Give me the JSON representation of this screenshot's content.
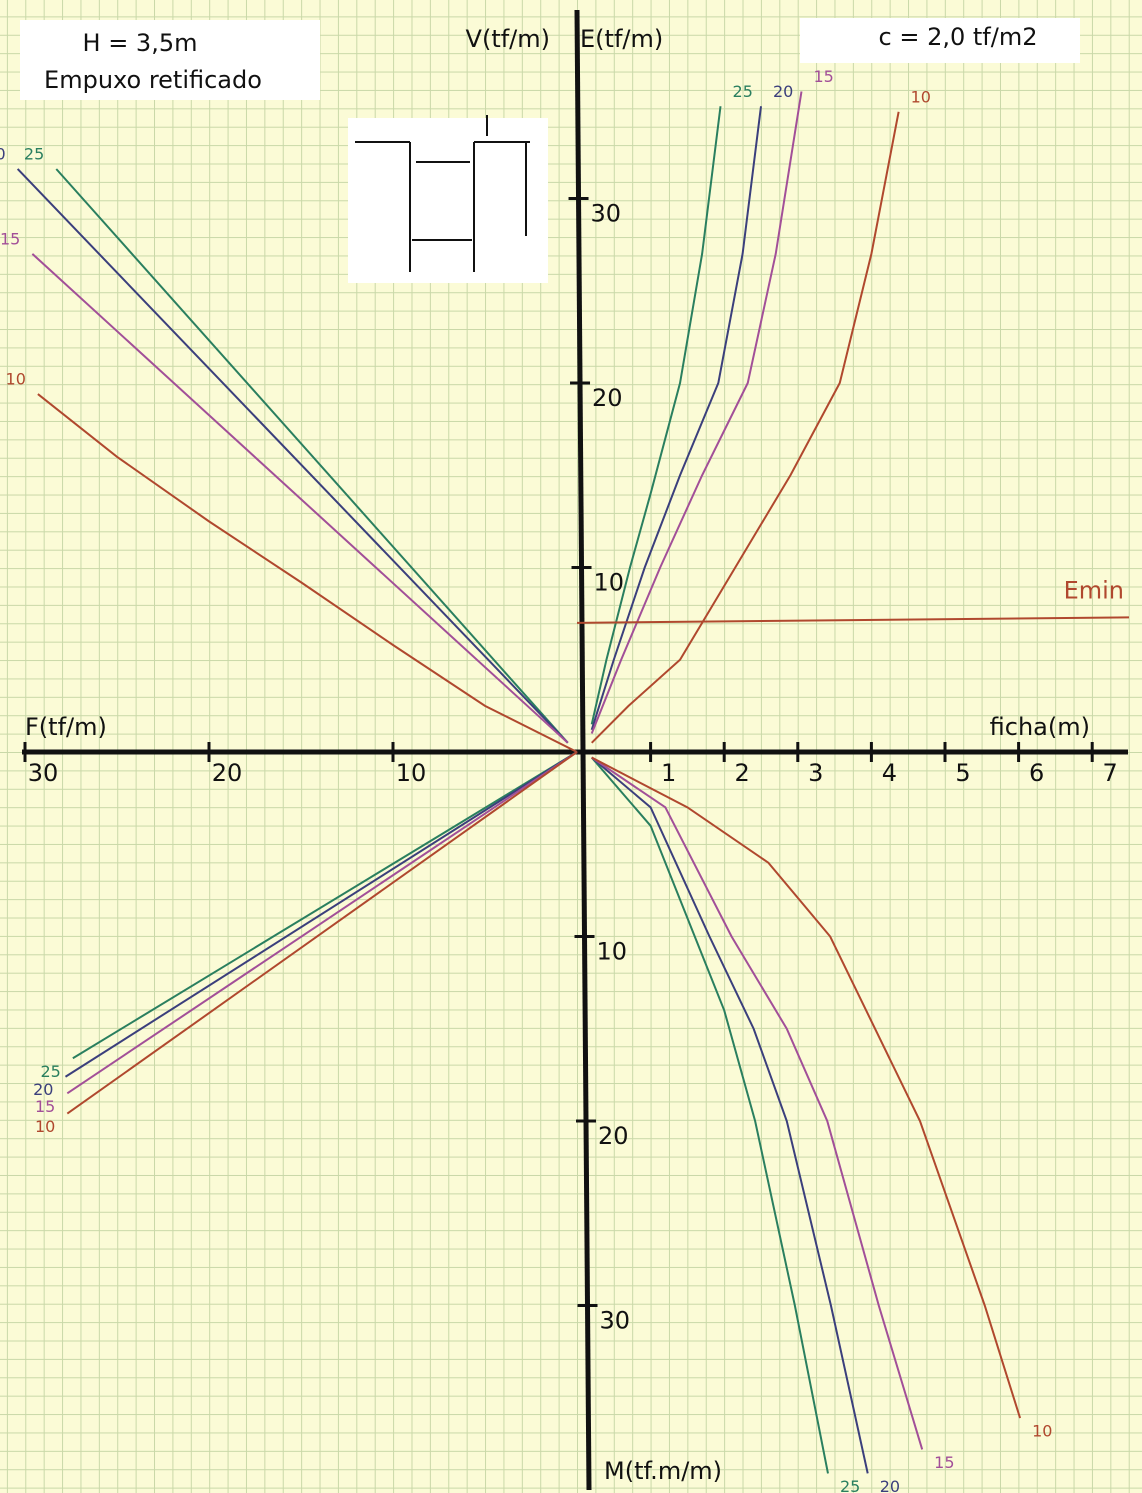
{
  "annotations": [
    "H = 3,5m",
    "Empuxo retificado",
    "c = 2,0 tf/m2"
  ],
  "chart_data": [
    {
      "type": "line",
      "quadrant": "upper-right",
      "xlabel": "ficha(m)",
      "ylabel": "E(tf/m)",
      "xlim": [
        0,
        7.5
      ],
      "ylim": [
        0,
        40
      ],
      "xticks": [
        1,
        2,
        3,
        4,
        5,
        6,
        7
      ],
      "yticks": [
        10,
        20,
        30
      ],
      "series": [
        {
          "name": "25",
          "color": "#2a7f5f",
          "x": [
            0.2,
            0.4,
            0.72,
            1.0,
            1.4,
            1.7,
            1.95
          ],
          "values": [
            1.5,
            5,
            10,
            14,
            20,
            27,
            35
          ]
        },
        {
          "name": "20",
          "color": "#3b3f7c",
          "x": [
            0.2,
            0.5,
            0.92,
            1.4,
            1.92,
            2.25,
            2.5
          ],
          "values": [
            1.2,
            5,
            10,
            15,
            20,
            27,
            35
          ]
        },
        {
          "name": "15",
          "color": "#a24f98",
          "x": [
            0.2,
            0.6,
            1.13,
            1.7,
            2.32,
            2.7,
            3.05
          ],
          "values": [
            1,
            5,
            10,
            15,
            20,
            27,
            35.8
          ]
        },
        {
          "name": "10",
          "color": "#b0482e",
          "x": [
            0.2,
            0.7,
            1.4,
            2.15,
            2.9,
            3.57,
            4.0,
            4.37
          ],
          "values": [
            0.5,
            2.5,
            5,
            10,
            15,
            20,
            27,
            34.7
          ]
        },
        {
          "name": "Emin",
          "color": "#b0482e",
          "x": [
            0,
            7.5
          ],
          "values": [
            7,
            7.3
          ]
        }
      ]
    },
    {
      "type": "line",
      "quadrant": "upper-left",
      "xlabel": "F(tf/m)",
      "ylabel": "V(tf/m)",
      "xlim": [
        0,
        30
      ],
      "ylim": [
        0,
        40
      ],
      "xticks": [
        10,
        20,
        30
      ],
      "series": [
        {
          "name": "25",
          "color": "#2a7f5f",
          "x": [
            0.5,
            28.3
          ],
          "values": [
            0.5,
            31.6
          ]
        },
        {
          "name": "20",
          "color": "#3b3f7c",
          "x": [
            0.5,
            30.4
          ],
          "values": [
            0.5,
            31.6
          ]
        },
        {
          "name": "15",
          "color": "#a24f98",
          "x": [
            0.5,
            29.6
          ],
          "values": [
            0.5,
            27
          ]
        },
        {
          "name": "10",
          "color": "#b0482e",
          "x": [
            0,
            5,
            10,
            15,
            20,
            25,
            29.3
          ],
          "values": [
            0,
            2.5,
            5.8,
            9.2,
            12.5,
            16,
            19.4
          ]
        }
      ]
    },
    {
      "type": "line",
      "quadrant": "lower-right",
      "ylabel": "M(tf.m/m)",
      "xlim": [
        0,
        7.5
      ],
      "ylim": [
        0,
        40
      ],
      "yticks": [
        10,
        20,
        30
      ],
      "series": [
        {
          "name": "25",
          "color": "#2a7f5f",
          "x": [
            0.2,
            1.0,
            1.6,
            2.0,
            2.42,
            2.96,
            3.41
          ],
          "values": [
            0.3,
            4,
            10,
            14,
            20,
            30,
            39.1
          ]
        },
        {
          "name": "20",
          "color": "#3b3f7c",
          "x": [
            0.2,
            1.0,
            1.8,
            2.4,
            2.85,
            3.45,
            3.95
          ],
          "values": [
            0.3,
            3,
            10,
            15,
            20,
            30,
            39.1
          ]
        },
        {
          "name": "15",
          "color": "#a24f98",
          "x": [
            0.2,
            1.2,
            2.1,
            2.85,
            3.4,
            4.1,
            4.69
          ],
          "values": [
            0.3,
            3,
            10,
            15,
            20,
            30,
            37.8
          ]
        },
        {
          "name": "10",
          "color": "#b0482e",
          "x": [
            0.2,
            1.5,
            2.6,
            3.44,
            4.66,
            5.54,
            6.02
          ],
          "values": [
            0.3,
            3,
            6,
            10,
            20,
            30,
            36.1
          ]
        }
      ]
    },
    {
      "type": "line",
      "quadrant": "lower-left",
      "xlim": [
        0,
        30
      ],
      "ylim": [
        0,
        40
      ],
      "series": [
        {
          "name": "25",
          "color": "#2a7f5f",
          "x": [
            0,
            27.4
          ],
          "values": [
            0,
            16.6
          ]
        },
        {
          "name": "20",
          "color": "#3b3f7c",
          "x": [
            0,
            27.8
          ],
          "values": [
            0,
            17.6
          ]
        },
        {
          "name": "15",
          "color": "#a24f98",
          "x": [
            0,
            27.7
          ],
          "values": [
            0,
            18.5
          ]
        },
        {
          "name": "10",
          "color": "#b0482e",
          "x": [
            0,
            27.7
          ],
          "values": [
            0,
            19.6
          ]
        }
      ]
    }
  ]
}
